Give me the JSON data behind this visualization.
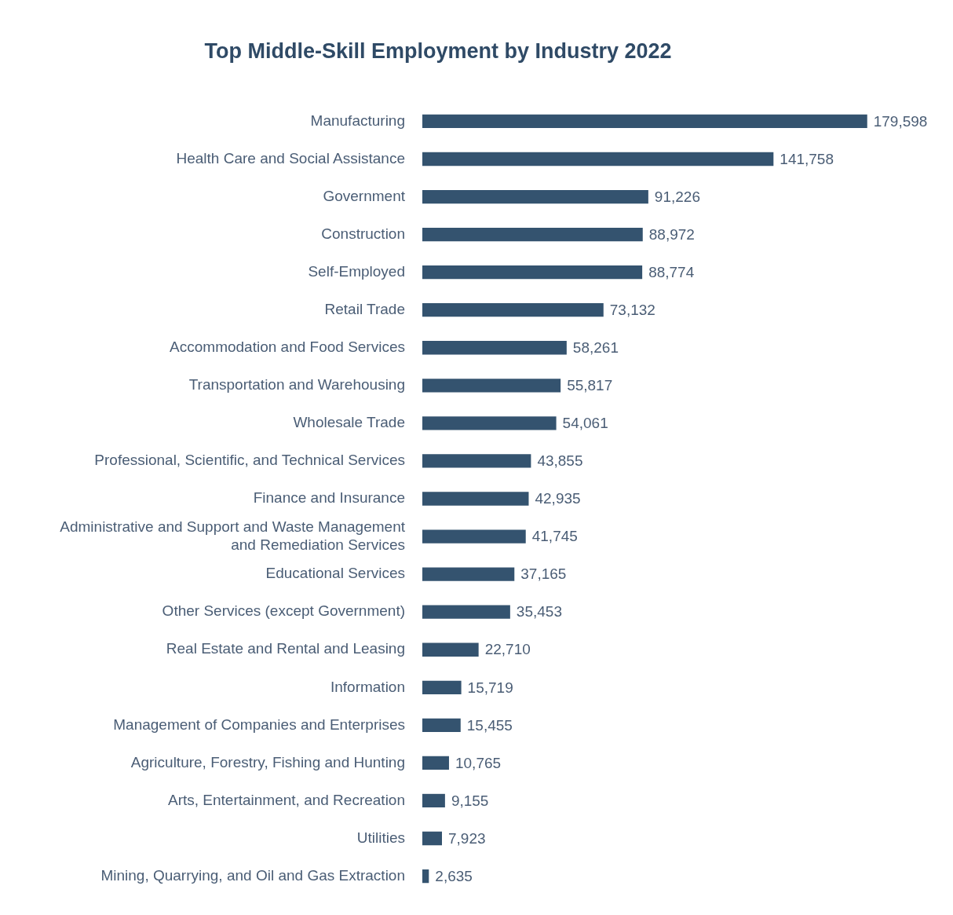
{
  "chart_data": {
    "type": "bar",
    "orientation": "horizontal",
    "title": "Top Middle-Skill Employment by Industry 2022",
    "categories": [
      "Manufacturing",
      "Health Care and Social Assistance",
      "Government",
      "Construction",
      "Self-Employed",
      "Retail Trade",
      "Accommodation and Food Services",
      "Transportation and Warehousing",
      "Wholesale Trade",
      "Professional, Scientific, and Technical Services",
      "Finance and Insurance",
      "Administrative and Support and Waste Management and Remediation Services",
      "Educational Services",
      "Other Services (except Government)",
      "Real Estate and Rental and Leasing",
      "Information",
      "Management of Companies and Enterprises",
      "Agriculture, Forestry, Fishing and Hunting",
      "Arts, Entertainment, and Recreation",
      "Utilities",
      "Mining, Quarrying, and Oil and Gas Extraction"
    ],
    "values": [
      179598,
      141758,
      91226,
      88972,
      88774,
      73132,
      58261,
      55817,
      54061,
      43855,
      42935,
      41745,
      37165,
      35453,
      22710,
      15719,
      15455,
      10765,
      9155,
      7923,
      2635
    ],
    "value_labels": [
      "179,598",
      "141,758",
      "91,226",
      "88,972",
      "88,774",
      "73,132",
      "58,261",
      "55,817",
      "54,061",
      "43,855",
      "42,935",
      "41,745",
      "37,165",
      "35,453",
      "22,710",
      "15,719",
      "15,455",
      "10,765",
      "9,155",
      "7,923",
      "2,635"
    ],
    "color": "#34536f",
    "legend": false,
    "tick_labels": "y"
  }
}
